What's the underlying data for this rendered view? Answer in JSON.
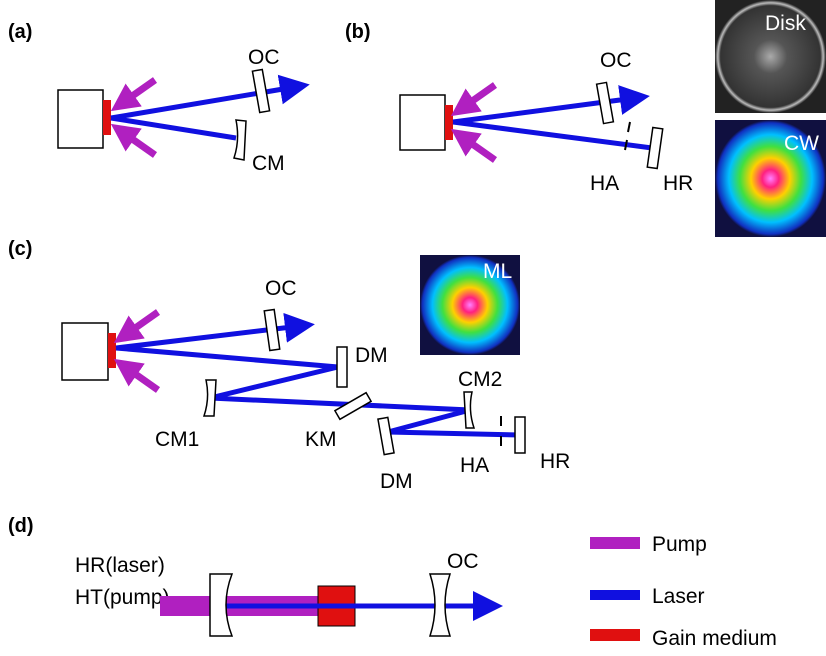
{
  "panels": [
    {
      "label": "(a)",
      "texts": [
        "OC",
        "CM"
      ]
    },
    {
      "label": "(b)",
      "texts": [
        "OC",
        "HA",
        "HR"
      ],
      "images": [
        "Disk",
        "CW"
      ]
    },
    {
      "label": "(c)",
      "texts": [
        "OC",
        "DM",
        "CM1",
        "KM",
        "DM",
        "CM2",
        "HA",
        "HR"
      ],
      "images": [
        "ML"
      ]
    },
    {
      "label": "(d)",
      "texts": [
        "HR(laser)",
        "HT(pump)",
        "OC"
      ]
    }
  ],
  "legend": [
    "Pump",
    "Laser",
    "Gain medium"
  ]
}
